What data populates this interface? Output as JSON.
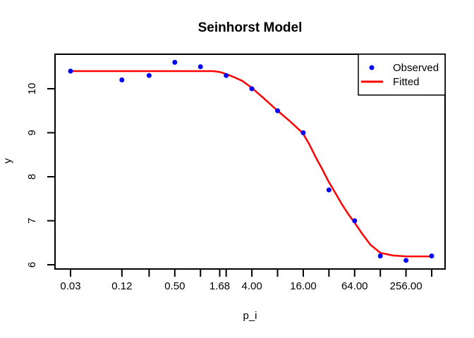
{
  "chart_data": {
    "type": "scatter",
    "title": "Seinhorst Model",
    "xlabel": "p_i",
    "ylabel": "y",
    "x_scale": "log2",
    "x_ticks": [
      0.03,
      0.12,
      0.25,
      0.5,
      1,
      1.68,
      2,
      4,
      8,
      16,
      32,
      64,
      128,
      256,
      512
    ],
    "x_tick_labels": [
      "0.03",
      "0.12",
      "",
      "0.50",
      "",
      "1.68",
      "",
      "4.00",
      "",
      "16.00",
      "",
      "64.00",
      "",
      "256.00",
      ""
    ],
    "y_ticks": [
      6,
      7,
      8,
      9,
      10
    ],
    "y_tick_labels": [
      "6",
      "7",
      "8",
      "9",
      "10"
    ],
    "xlim": [
      0.0197,
      737
    ],
    "ylim": [
      5.9,
      10.77
    ],
    "grid": false,
    "legend_position": "topright",
    "axis_color": "#000000",
    "background_color": "#ffffff",
    "series": [
      {
        "name": "Observed",
        "type": "scatter",
        "color": "#0000ff",
        "x": [
          0.03,
          0.12,
          0.25,
          0.5,
          1,
          2,
          4,
          8,
          16,
          32,
          64,
          128,
          256,
          512
        ],
        "y": [
          10.4,
          10.2,
          10.3,
          10.6,
          10.5,
          10.3,
          10.0,
          9.5,
          9.0,
          7.7,
          7.0,
          6.2,
          6.1,
          6.2
        ]
      },
      {
        "name": "Fitted",
        "type": "line",
        "color": "#ff0000",
        "x": [
          0.03,
          0.5,
          1.0,
          1.4,
          1.68,
          1.96,
          2.42,
          3.08,
          3.93,
          5.54,
          7.79,
          11.2,
          15.8,
          18.8,
          22.3,
          26.6,
          31.5,
          37.8,
          45.2,
          54,
          63.8,
          77.4,
          97.6,
          128,
          181,
          256,
          380,
          512
        ],
        "y": [
          10.4,
          10.4,
          10.4,
          10.4,
          10.38,
          10.34,
          10.27,
          10.18,
          10.03,
          9.78,
          9.52,
          9.26,
          8.99,
          8.74,
          8.45,
          8.18,
          7.9,
          7.64,
          7.38,
          7.15,
          6.96,
          6.72,
          6.46,
          6.27,
          6.21,
          6.19,
          6.19,
          6.19
        ]
      }
    ]
  },
  "legend": {
    "items": [
      {
        "label": "Observed",
        "marker": "point",
        "color": "#0000ff"
      },
      {
        "label": "Fitted",
        "marker": "line",
        "color": "#ff0000"
      }
    ]
  }
}
